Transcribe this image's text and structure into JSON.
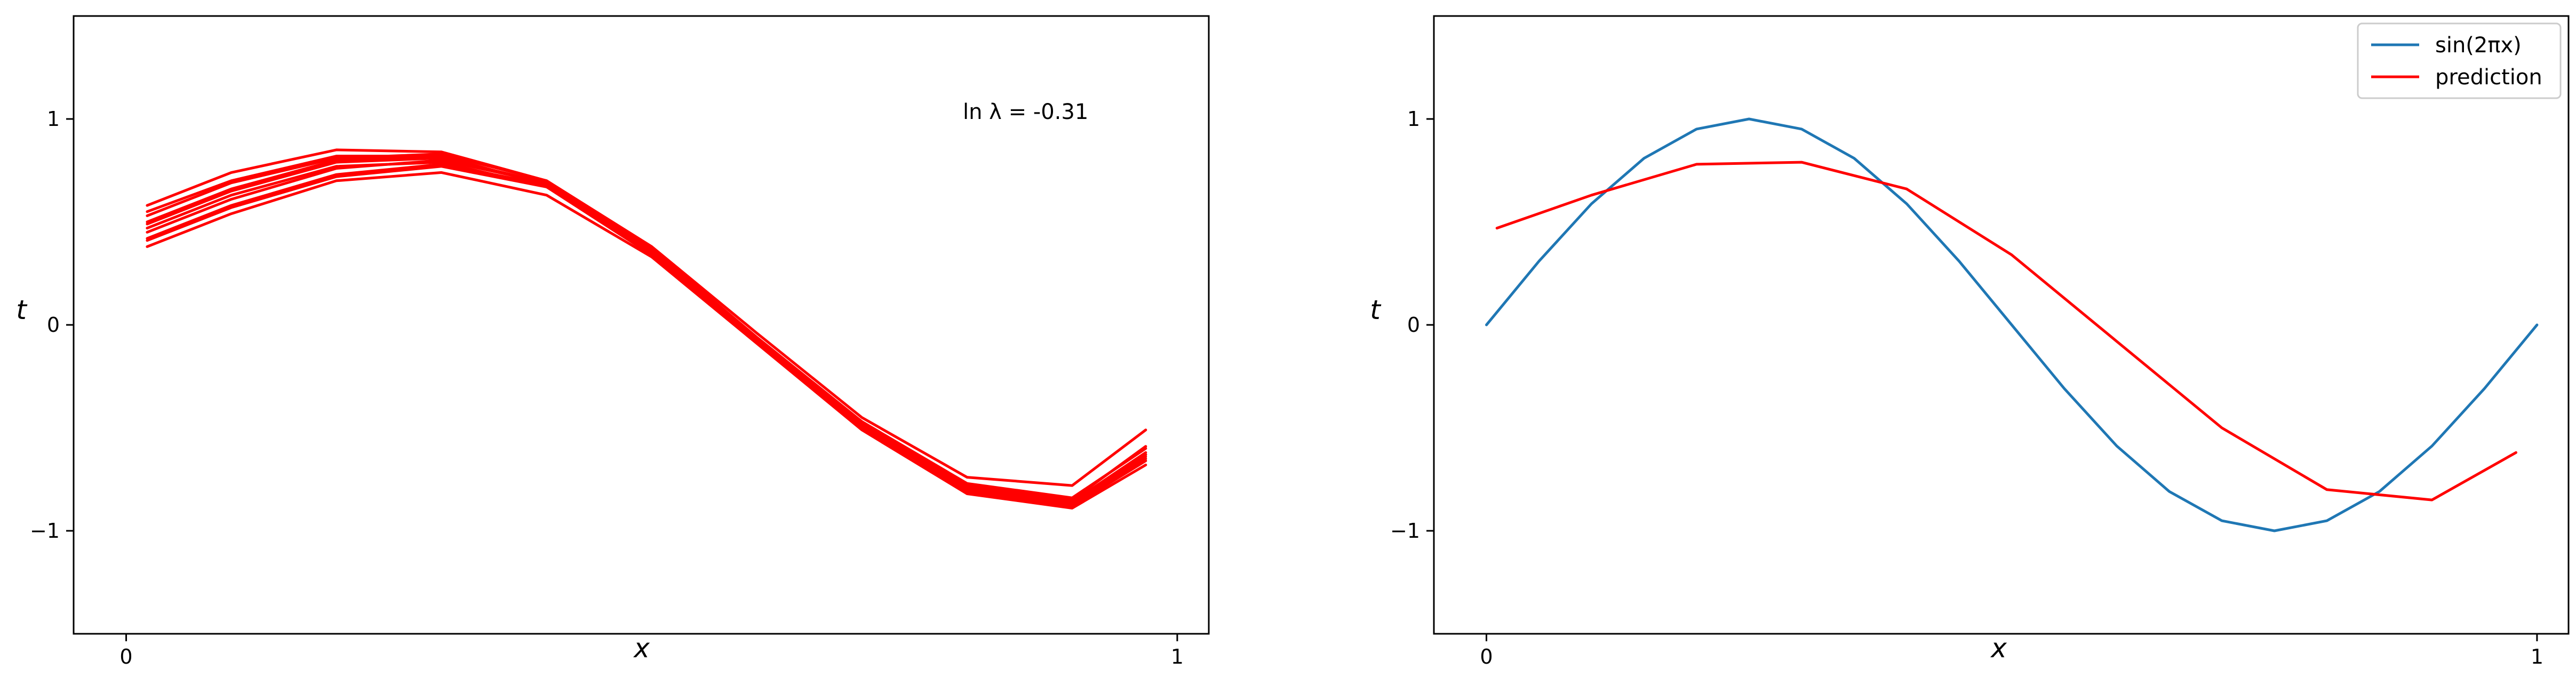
{
  "chart_data": [
    {
      "type": "line",
      "title": "",
      "xlabel": "x",
      "ylabel": "t",
      "xlim": [
        -0.05,
        1.03
      ],
      "ylim": [
        -1.5,
        1.5
      ],
      "xticks": [
        {
          "value": 0,
          "label": "0"
        },
        {
          "value": 1,
          "label": "1"
        }
      ],
      "yticks": [
        {
          "value": -1,
          "label": "−1"
        },
        {
          "value": 0,
          "label": "0"
        },
        {
          "value": 1,
          "label": "1"
        }
      ],
      "annotation": "ln λ = -0.31",
      "grid": false,
      "legend": null,
      "series_color": "#ff0000",
      "x": [
        0.02,
        0.1,
        0.2,
        0.3,
        0.4,
        0.5,
        0.6,
        0.7,
        0.8,
        0.9,
        0.97
      ],
      "series": [
        {
          "values": [
            0.5,
            0.66,
            0.8,
            0.82,
            0.68,
            0.35,
            -0.08,
            -0.48,
            -0.78,
            -0.86,
            -0.63
          ]
        },
        {
          "values": [
            0.58,
            0.74,
            0.85,
            0.84,
            0.7,
            0.38,
            -0.04,
            -0.45,
            -0.74,
            -0.78,
            -0.51
          ]
        },
        {
          "values": [
            0.45,
            0.61,
            0.76,
            0.8,
            0.69,
            0.37,
            -0.07,
            -0.5,
            -0.8,
            -0.88,
            -0.65
          ]
        },
        {
          "values": [
            0.38,
            0.54,
            0.7,
            0.74,
            0.63,
            0.33,
            -0.09,
            -0.51,
            -0.82,
            -0.89,
            -0.68
          ]
        },
        {
          "values": [
            0.42,
            0.58,
            0.73,
            0.78,
            0.68,
            0.36,
            -0.08,
            -0.49,
            -0.8,
            -0.87,
            -0.64
          ]
        },
        {
          "values": [
            0.53,
            0.69,
            0.81,
            0.83,
            0.7,
            0.37,
            -0.06,
            -0.47,
            -0.77,
            -0.84,
            -0.6
          ]
        },
        {
          "values": [
            0.47,
            0.63,
            0.77,
            0.79,
            0.67,
            0.34,
            -0.08,
            -0.49,
            -0.79,
            -0.86,
            -0.62
          ]
        },
        {
          "values": [
            0.55,
            0.7,
            0.82,
            0.82,
            0.68,
            0.34,
            -0.07,
            -0.47,
            -0.78,
            -0.85,
            -0.59
          ]
        },
        {
          "values": [
            0.41,
            0.57,
            0.72,
            0.77,
            0.67,
            0.36,
            -0.07,
            -0.49,
            -0.81,
            -0.88,
            -0.66
          ]
        },
        {
          "values": [
            0.49,
            0.65,
            0.79,
            0.81,
            0.69,
            0.36,
            -0.07,
            -0.48,
            -0.79,
            -0.87,
            -0.63
          ]
        }
      ]
    },
    {
      "type": "line",
      "title": "",
      "xlabel": "x",
      "ylabel": "t",
      "xlim": [
        -0.05,
        1.03
      ],
      "ylim": [
        -1.5,
        1.5
      ],
      "xticks": [
        {
          "value": 0,
          "label": "0"
        },
        {
          "value": 1,
          "label": "1"
        }
      ],
      "yticks": [
        {
          "value": -1,
          "label": "−1"
        },
        {
          "value": 0,
          "label": "0"
        },
        {
          "value": 1,
          "label": "1"
        }
      ],
      "grid": false,
      "legend": "top-right",
      "series": [
        {
          "name": "sin(2πx)",
          "color": "#1f77b4",
          "x": [
            0,
            0.05,
            0.1,
            0.15,
            0.2,
            0.25,
            0.3,
            0.35,
            0.4,
            0.45,
            0.5,
            0.55,
            0.6,
            0.65,
            0.7,
            0.75,
            0.8,
            0.85,
            0.9,
            0.95,
            1
          ],
          "values": [
            0,
            0.309,
            0.588,
            0.809,
            0.951,
            1,
            0.951,
            0.809,
            0.588,
            0.309,
            0,
            -0.309,
            -0.588,
            -0.809,
            -0.951,
            -1,
            -0.951,
            -0.809,
            -0.588,
            -0.309,
            0
          ]
        },
        {
          "name": "prediction",
          "color": "#ff0000",
          "x": [
            0.01,
            0.1,
            0.2,
            0.3,
            0.4,
            0.5,
            0.6,
            0.7,
            0.8,
            0.9,
            0.98
          ],
          "values": [
            0.47,
            0.63,
            0.78,
            0.79,
            0.66,
            0.34,
            -0.08,
            -0.5,
            -0.8,
            -0.85,
            -0.62
          ]
        }
      ]
    }
  ]
}
